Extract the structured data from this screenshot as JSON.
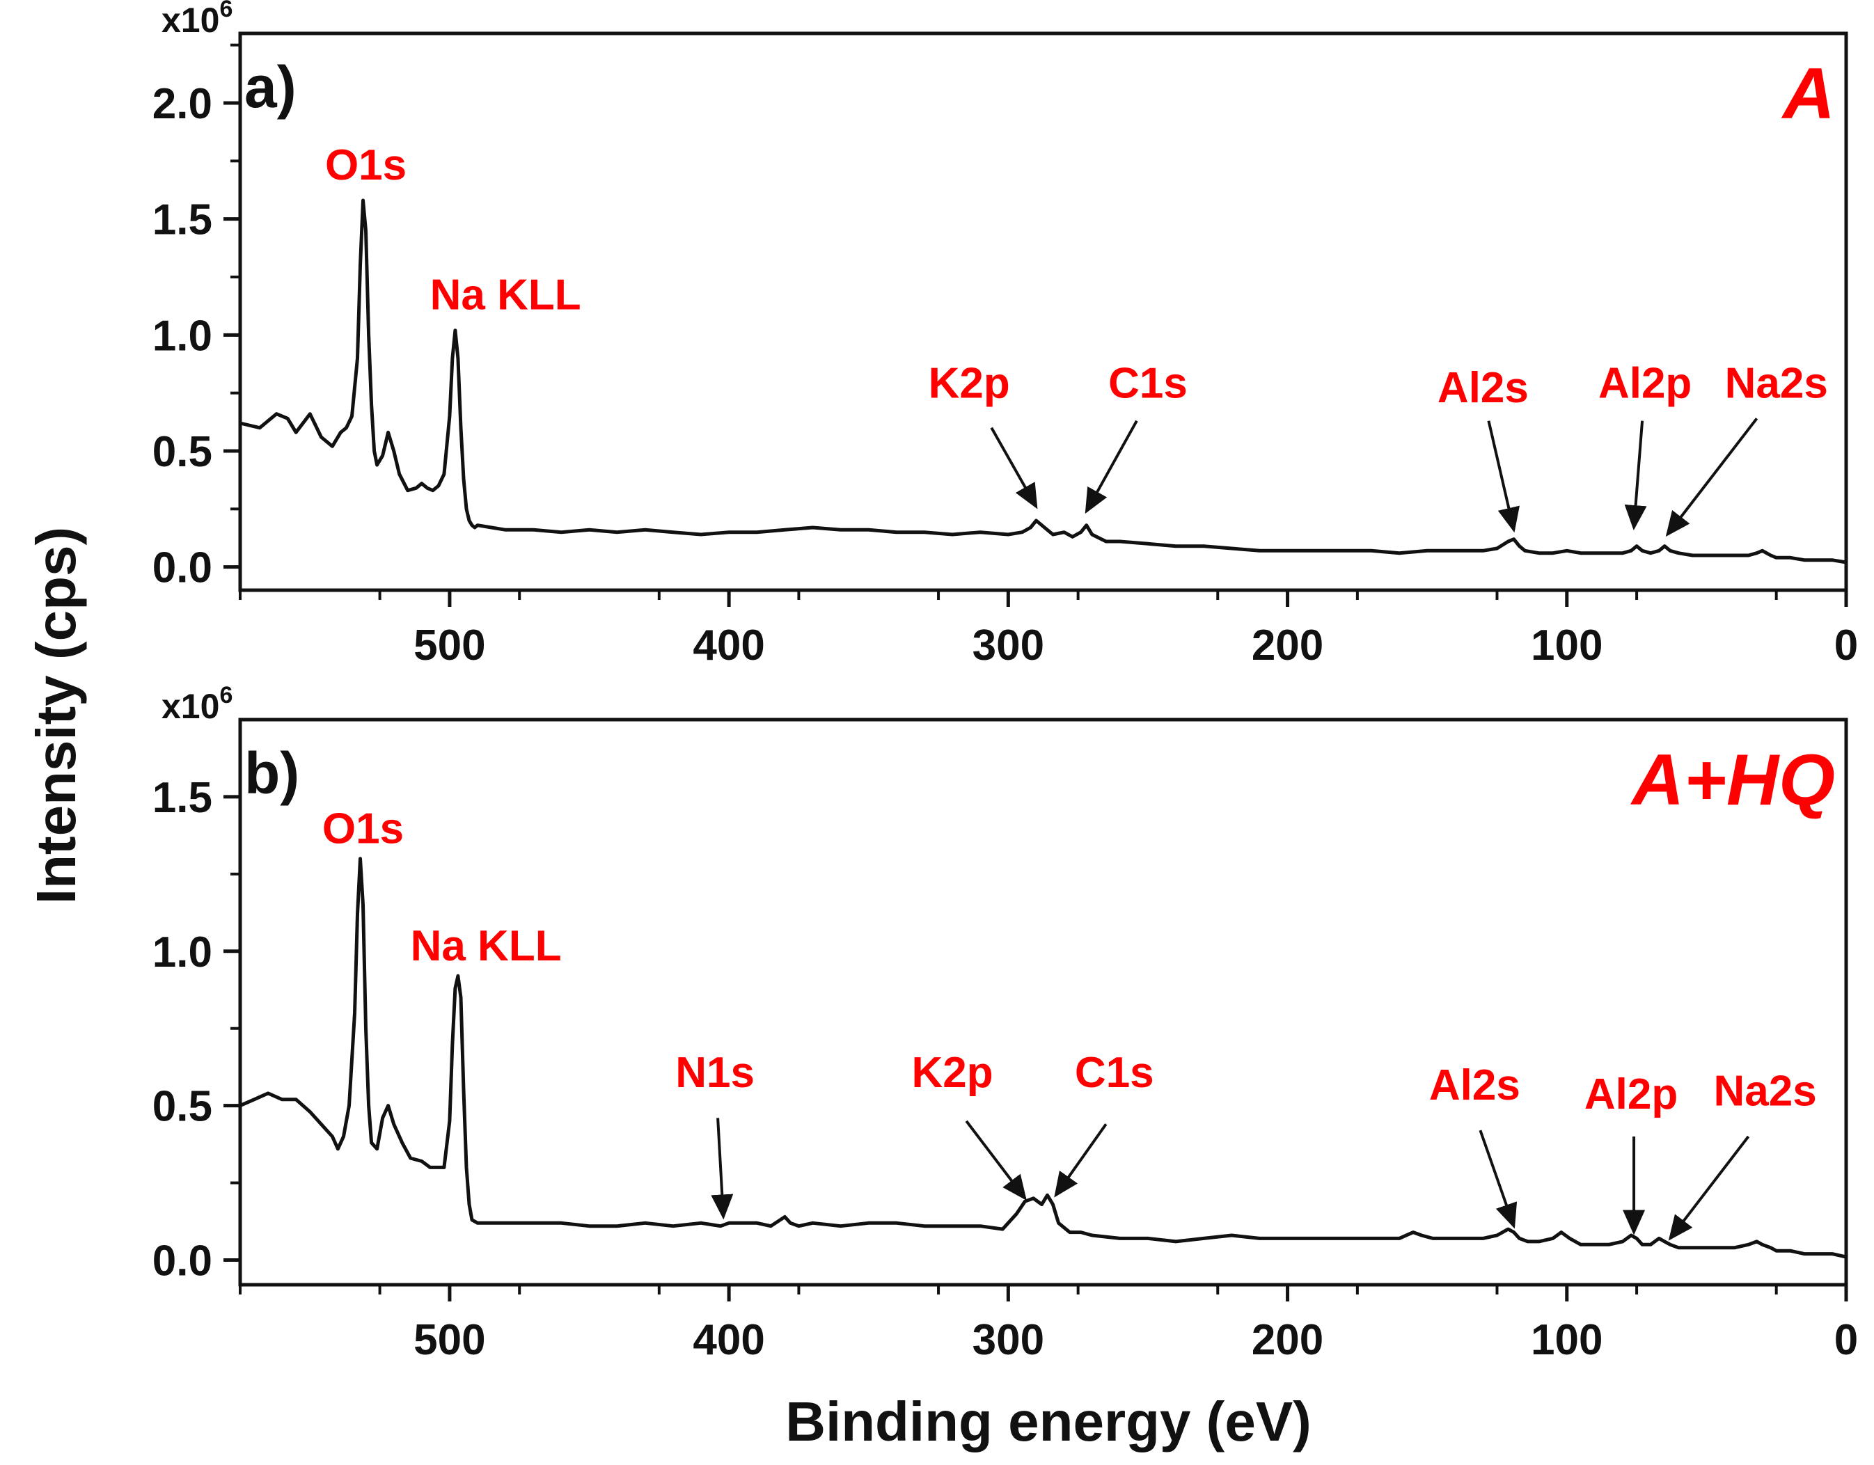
{
  "figure": {
    "xlabel": "Binding energy (eV)",
    "ylabel": "Intensity (cps)",
    "label_color": "#ff0000",
    "line_color": "#111111"
  },
  "chart_data": [
    {
      "type": "line",
      "panel": "a)",
      "sample": "A",
      "multiplier": "x10",
      "multiplier_exp": "6",
      "xlim": [
        575,
        0
      ],
      "ylim": [
        -0.1,
        2.3
      ],
      "x_ticks": [
        500,
        400,
        300,
        200,
        100,
        0
      ],
      "y_ticks": [
        0.0,
        0.5,
        1.0,
        1.5,
        2.0
      ],
      "y_tick_labels": [
        "0.0",
        "0.5",
        "1.0",
        "1.5",
        "2.0"
      ],
      "series": [
        {
          "name": "A",
          "x": [
            575,
            568,
            562,
            558,
            555,
            550,
            546,
            542,
            539,
            537,
            535,
            533,
            532,
            531,
            530,
            529,
            528,
            527,
            526,
            524,
            522,
            520,
            518,
            515,
            512,
            510,
            508,
            506,
            504,
            502,
            500,
            499,
            498,
            497,
            496,
            495,
            494,
            493,
            492,
            491,
            490,
            485,
            480,
            470,
            460,
            450,
            440,
            430,
            420,
            410,
            400,
            390,
            380,
            370,
            360,
            350,
            340,
            330,
            320,
            310,
            300,
            295,
            292,
            290,
            287,
            284,
            280,
            277,
            274,
            272,
            270,
            265,
            260,
            250,
            240,
            230,
            220,
            210,
            200,
            190,
            180,
            170,
            160,
            150,
            140,
            130,
            125,
            121,
            119,
            117,
            115,
            110,
            105,
            100,
            95,
            90,
            85,
            80,
            77,
            75,
            73,
            70,
            67,
            65,
            63,
            60,
            55,
            50,
            45,
            40,
            35,
            32,
            30,
            27,
            25,
            20,
            15,
            10,
            5,
            0
          ],
          "y": [
            0.62,
            0.6,
            0.66,
            0.64,
            0.58,
            0.66,
            0.56,
            0.52,
            0.58,
            0.6,
            0.65,
            0.9,
            1.3,
            1.58,
            1.45,
            1.0,
            0.7,
            0.5,
            0.44,
            0.48,
            0.58,
            0.5,
            0.4,
            0.33,
            0.34,
            0.36,
            0.34,
            0.33,
            0.35,
            0.4,
            0.65,
            0.9,
            1.02,
            0.9,
            0.6,
            0.38,
            0.25,
            0.2,
            0.18,
            0.17,
            0.18,
            0.17,
            0.16,
            0.16,
            0.15,
            0.16,
            0.15,
            0.16,
            0.15,
            0.14,
            0.15,
            0.15,
            0.16,
            0.17,
            0.16,
            0.16,
            0.15,
            0.15,
            0.14,
            0.15,
            0.14,
            0.15,
            0.17,
            0.2,
            0.17,
            0.14,
            0.15,
            0.13,
            0.15,
            0.18,
            0.14,
            0.11,
            0.11,
            0.1,
            0.09,
            0.09,
            0.08,
            0.07,
            0.07,
            0.07,
            0.07,
            0.07,
            0.06,
            0.07,
            0.07,
            0.07,
            0.08,
            0.11,
            0.12,
            0.09,
            0.07,
            0.06,
            0.06,
            0.07,
            0.06,
            0.06,
            0.06,
            0.06,
            0.07,
            0.09,
            0.07,
            0.06,
            0.07,
            0.09,
            0.07,
            0.06,
            0.05,
            0.05,
            0.05,
            0.05,
            0.05,
            0.06,
            0.07,
            0.05,
            0.04,
            0.04,
            0.03,
            0.03,
            0.03,
            0.02
          ]
        }
      ],
      "annotations": [
        {
          "text": "O1s",
          "x": 530,
          "y": 1.67
        },
        {
          "text": "Na KLL",
          "x": 480,
          "y": 1.11
        },
        {
          "text": "K2p",
          "x": 314,
          "y": 0.73,
          "arrow_from": [
            306,
            0.6
          ],
          "arrow_to": [
            290,
            0.26
          ]
        },
        {
          "text": "C1s",
          "x": 250,
          "y": 0.73,
          "arrow_from": [
            254,
            0.63
          ],
          "arrow_to": [
            272,
            0.24
          ]
        },
        {
          "text": "Al2s",
          "x": 130,
          "y": 0.71,
          "arrow_from": [
            128,
            0.63
          ],
          "arrow_to": [
            119,
            0.16
          ]
        },
        {
          "text": "Al2p",
          "x": 72,
          "y": 0.73,
          "arrow_from": [
            73,
            0.63
          ],
          "arrow_to": [
            76,
            0.17
          ]
        },
        {
          "text": "Na2s",
          "x": 25,
          "y": 0.73,
          "arrow_from": [
            32,
            0.64
          ],
          "arrow_to": [
            64,
            0.14
          ]
        }
      ]
    },
    {
      "type": "line",
      "panel": "b)",
      "sample": "A+HQ",
      "multiplier": "x10",
      "multiplier_exp": "6",
      "xlim": [
        575,
        0
      ],
      "ylim": [
        -0.08,
        1.75
      ],
      "x_ticks": [
        500,
        400,
        300,
        200,
        100,
        0
      ],
      "y_ticks": [
        0.0,
        0.5,
        1.0,
        1.5
      ],
      "y_tick_labels": [
        "0.0",
        "0.5",
        "1.0",
        "1.5"
      ],
      "series": [
        {
          "name": "A+HQ",
          "x": [
            575,
            570,
            565,
            560,
            555,
            550,
            546,
            542,
            540,
            538,
            536,
            534,
            533,
            532,
            531,
            530,
            529,
            528,
            526,
            524,
            522,
            520,
            517,
            514,
            510,
            507,
            505,
            502,
            500,
            499,
            498,
            497,
            496,
            495,
            494,
            493,
            492,
            490,
            485,
            480,
            470,
            460,
            450,
            440,
            430,
            420,
            410,
            403,
            400,
            390,
            385,
            380,
            378,
            375,
            370,
            360,
            350,
            340,
            330,
            320,
            310,
            302,
            297,
            294,
            291,
            288,
            286,
            284,
            282,
            278,
            274,
            270,
            260,
            250,
            240,
            230,
            220,
            210,
            200,
            190,
            180,
            170,
            160,
            155,
            152,
            148,
            140,
            130,
            125,
            121,
            119,
            117,
            114,
            110,
            105,
            102,
            99,
            95,
            90,
            85,
            80,
            77,
            75,
            73,
            70,
            67,
            65,
            63,
            60,
            55,
            50,
            45,
            40,
            35,
            32,
            30,
            27,
            25,
            20,
            15,
            10,
            5,
            0
          ],
          "y": [
            0.5,
            0.52,
            0.54,
            0.52,
            0.52,
            0.48,
            0.44,
            0.4,
            0.36,
            0.4,
            0.5,
            0.8,
            1.12,
            1.3,
            1.15,
            0.75,
            0.5,
            0.38,
            0.36,
            0.46,
            0.5,
            0.44,
            0.38,
            0.33,
            0.32,
            0.3,
            0.3,
            0.3,
            0.45,
            0.7,
            0.88,
            0.92,
            0.85,
            0.55,
            0.3,
            0.18,
            0.13,
            0.12,
            0.12,
            0.12,
            0.12,
            0.12,
            0.11,
            0.11,
            0.12,
            0.11,
            0.12,
            0.11,
            0.12,
            0.12,
            0.11,
            0.14,
            0.12,
            0.11,
            0.12,
            0.11,
            0.12,
            0.12,
            0.11,
            0.11,
            0.11,
            0.1,
            0.15,
            0.19,
            0.2,
            0.18,
            0.21,
            0.18,
            0.12,
            0.09,
            0.09,
            0.08,
            0.07,
            0.07,
            0.06,
            0.07,
            0.08,
            0.07,
            0.07,
            0.07,
            0.07,
            0.07,
            0.07,
            0.09,
            0.08,
            0.07,
            0.07,
            0.07,
            0.08,
            0.1,
            0.09,
            0.07,
            0.06,
            0.06,
            0.07,
            0.09,
            0.07,
            0.05,
            0.05,
            0.05,
            0.06,
            0.08,
            0.07,
            0.05,
            0.05,
            0.07,
            0.06,
            0.05,
            0.04,
            0.04,
            0.04,
            0.04,
            0.04,
            0.05,
            0.06,
            0.05,
            0.04,
            0.03,
            0.03,
            0.02,
            0.02,
            0.02,
            0.01
          ]
        }
      ],
      "annotations": [
        {
          "text": "O1s",
          "x": 531,
          "y": 1.35
        },
        {
          "text": "Na KLL",
          "x": 487,
          "y": 0.97
        },
        {
          "text": "N1s",
          "x": 405,
          "y": 0.56,
          "arrow_from": [
            404,
            0.46
          ],
          "arrow_to": [
            402,
            0.14
          ]
        },
        {
          "text": "K2p",
          "x": 320,
          "y": 0.56,
          "arrow_from": [
            315,
            0.45
          ],
          "arrow_to": [
            294,
            0.2
          ]
        },
        {
          "text": "C1s",
          "x": 262,
          "y": 0.56,
          "arrow_from": [
            265,
            0.44
          ],
          "arrow_to": [
            283,
            0.21
          ]
        },
        {
          "text": "Al2s",
          "x": 133,
          "y": 0.52,
          "arrow_from": [
            131,
            0.42
          ],
          "arrow_to": [
            119,
            0.11
          ]
        },
        {
          "text": "Al2p",
          "x": 77,
          "y": 0.49,
          "arrow_from": [
            76,
            0.4
          ],
          "arrow_to": [
            76,
            0.09
          ]
        },
        {
          "text": "Na2s",
          "x": 29,
          "y": 0.5,
          "arrow_from": [
            35,
            0.4
          ],
          "arrow_to": [
            63,
            0.07
          ]
        }
      ]
    }
  ]
}
